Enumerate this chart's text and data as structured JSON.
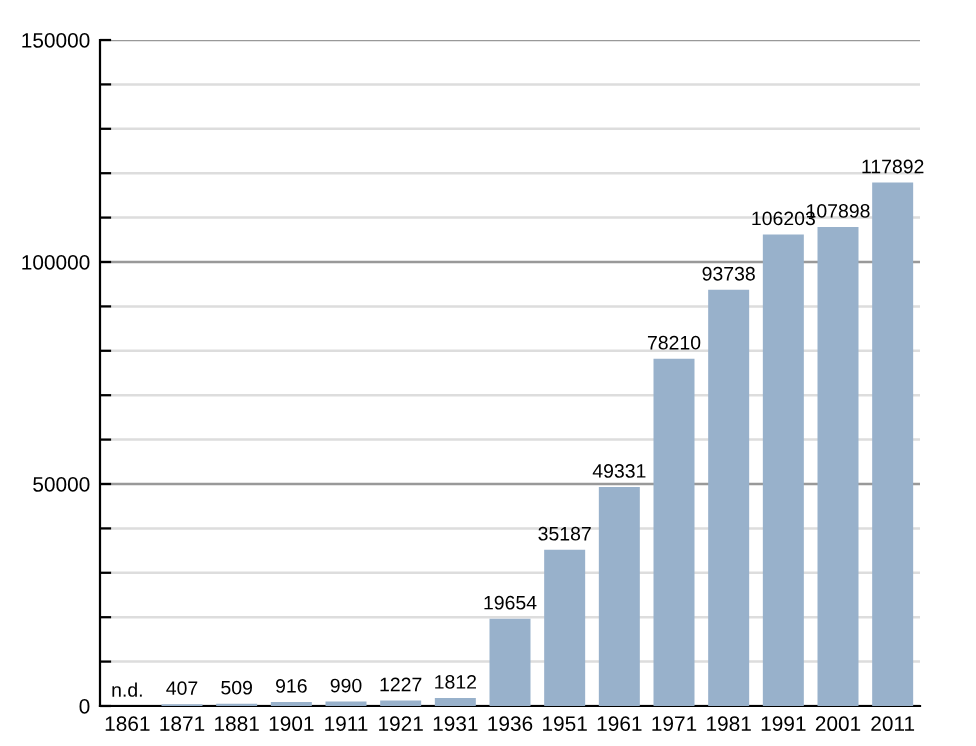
{
  "chart_data": {
    "type": "bar",
    "categories": [
      "1861",
      "1871",
      "1881",
      "1901",
      "1911",
      "1921",
      "1931",
      "1936",
      "1951",
      "1961",
      "1971",
      "1981",
      "1991",
      "2001",
      "2011"
    ],
    "values": [
      null,
      407,
      509,
      916,
      990,
      1227,
      1812,
      19654,
      35187,
      49331,
      78210,
      93738,
      106203,
      107898,
      117892
    ],
    "value_labels": [
      "n.d.",
      "407",
      "509",
      "916",
      "990",
      "1227",
      "1812",
      "19654",
      "35187",
      "49331",
      "78210",
      "93738",
      "106203",
      "107898",
      "117892"
    ],
    "color": "#98b1cb",
    "ylim": [
      0,
      150000
    ],
    "yticks": [
      0,
      {
        "value": 10000,
        "label": null
      },
      {
        "value": 20000,
        "label": null
      },
      {
        "value": 30000,
        "label": null
      },
      {
        "value": 40000,
        "label": null
      },
      50000,
      {
        "value": 60000,
        "label": null
      },
      {
        "value": 70000,
        "label": null
      },
      {
        "value": 80000,
        "label": null
      },
      {
        "value": 90000,
        "label": null
      },
      100000,
      {
        "value": 110000,
        "label": null
      },
      {
        "value": 120000,
        "label": null
      },
      {
        "value": 130000,
        "label": null
      },
      {
        "value": 140000,
        "label": null
      },
      150000
    ],
    "grid": "y"
  }
}
